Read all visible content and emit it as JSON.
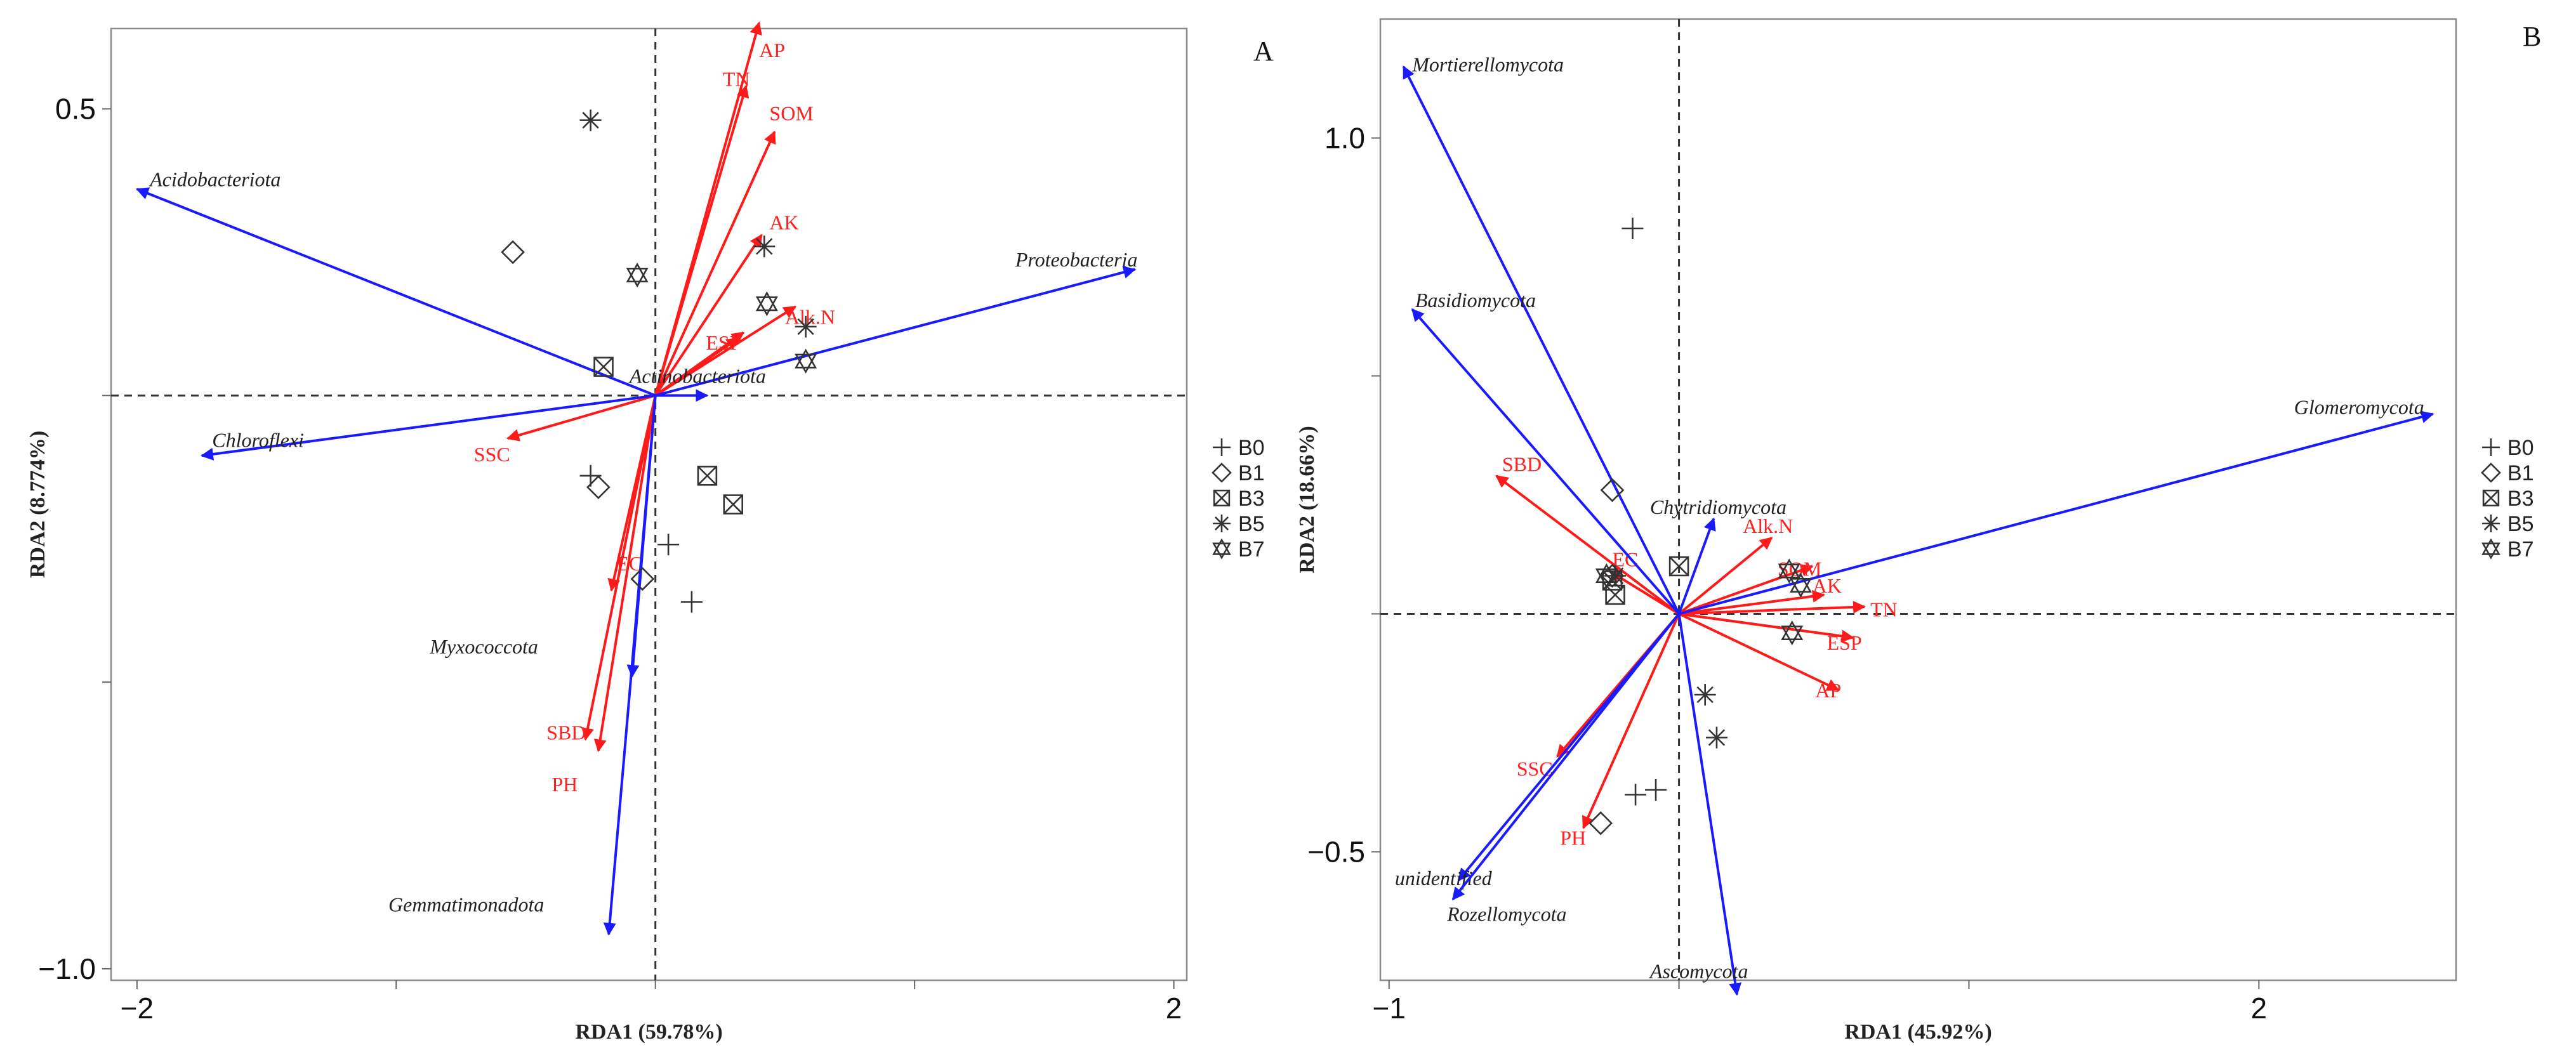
{
  "chart_data": [
    {
      "type": "scatter",
      "panel": "A",
      "xlabel": "RDA1 (59.78%)",
      "ylabel": "RDA2 (8.774%)",
      "xlim": [
        -2.1,
        2.05
      ],
      "ylim": [
        -1.02,
        0.64
      ],
      "xticks": [
        {
          "v": -2,
          "label": "−2"
        },
        {
          "v": 2,
          "label": "2"
        }
      ],
      "xminor": [
        -1,
        0,
        1
      ],
      "yticks": [
        {
          "v": 0.5,
          "label": "0.5"
        },
        {
          "v": -1.0,
          "label": "−1.0"
        }
      ],
      "yminor": [
        0,
        -0.5
      ],
      "taxa_arrows": [
        {
          "name": "Acidobacteriota",
          "x": -2.0,
          "y": 0.36,
          "lx": -1.95,
          "ly": 0.365,
          "anchor": "start"
        },
        {
          "name": "Proteobacteria",
          "x": 1.85,
          "y": 0.22,
          "lx": 1.86,
          "ly": 0.225,
          "anchor": "end"
        },
        {
          "name": "Chloroflexi",
          "x": -1.75,
          "y": -0.105,
          "lx": -1.71,
          "ly": -0.09,
          "anchor": "start"
        },
        {
          "name": "Actinobacteriota",
          "x": 0.2,
          "y": 0.0,
          "lx": -0.1,
          "ly": 0.022,
          "anchor": "start"
        },
        {
          "name": "Myxococcota",
          "x": -0.09,
          "y": -0.49,
          "lx": -0.87,
          "ly": -0.45,
          "anchor": "start"
        },
        {
          "name": "Gemmatimonadota",
          "x": -0.18,
          "y": -0.94,
          "lx": -1.03,
          "ly": -0.9,
          "anchor": "start"
        }
      ],
      "env_arrows": [
        {
          "name": "AP",
          "x": 0.4,
          "y": 0.65,
          "lx": 0.4,
          "ly": 0.59,
          "anchor": "start"
        },
        {
          "name": "TN",
          "x": 0.35,
          "y": 0.54,
          "lx": 0.26,
          "ly": 0.54,
          "anchor": "start"
        },
        {
          "name": "SOM",
          "x": 0.46,
          "y": 0.46,
          "lx": 0.44,
          "ly": 0.48,
          "anchor": "start"
        },
        {
          "name": "AK",
          "x": 0.41,
          "y": 0.28,
          "lx": 0.44,
          "ly": 0.29,
          "anchor": "start"
        },
        {
          "name": "Alk.N",
          "x": 0.54,
          "y": 0.155,
          "lx": 0.5,
          "ly": 0.125,
          "anchor": "start"
        },
        {
          "name": "ESP",
          "x": 0.34,
          "y": 0.11,
          "lx": 0.195,
          "ly": 0.08,
          "anchor": "start"
        },
        {
          "name": "EC",
          "x": 0.32,
          "y": 0.1,
          "lx": 0.0,
          "ly": 0.0,
          "anchor": "start",
          "hidden": true
        },
        {
          "name": "SSC",
          "x": -0.57,
          "y": -0.075,
          "lx": -0.7,
          "ly": -0.115,
          "anchor": "start"
        },
        {
          "name": "EC",
          "x": -0.17,
          "y": -0.34,
          "lx": -0.15,
          "ly": -0.305,
          "anchor": "start"
        },
        {
          "name": "SBD",
          "x": -0.27,
          "y": -0.6,
          "lx": -0.42,
          "ly": -0.6,
          "anchor": "start"
        },
        {
          "name": "PH",
          "x": -0.22,
          "y": -0.62,
          "lx": -0.4,
          "ly": -0.69,
          "anchor": "start"
        }
      ],
      "samples": [
        {
          "group": "B0",
          "points": [
            [
              -0.25,
              -0.14
            ],
            [
              0.05,
              -0.26
            ],
            [
              0.14,
              -0.36
            ]
          ]
        },
        {
          "group": "B1",
          "points": [
            [
              -0.55,
              0.25
            ],
            [
              -0.22,
              -0.16
            ],
            [
              -0.05,
              -0.32
            ]
          ]
        },
        {
          "group": "B3",
          "points": [
            [
              -0.2,
              0.05
            ],
            [
              0.2,
              -0.14
            ],
            [
              0.3,
              -0.19
            ]
          ]
        },
        {
          "group": "B5",
          "points": [
            [
              -0.25,
              0.48
            ],
            [
              0.42,
              0.26
            ],
            [
              0.58,
              0.12
            ]
          ]
        },
        {
          "group": "B7",
          "points": [
            [
              -0.07,
              0.21
            ],
            [
              0.43,
              0.16
            ],
            [
              0.58,
              0.06
            ]
          ]
        }
      ]
    },
    {
      "type": "scatter",
      "panel": "B",
      "xlabel": "RDA1 (45.92%)",
      "ylabel": "RDA2 (18.66%)",
      "xlim": [
        -1.03,
        2.68
      ],
      "ylim": [
        -0.77,
        1.25
      ],
      "xticks": [
        {
          "v": -1,
          "label": "−1"
        },
        {
          "v": 2,
          "label": "2"
        }
      ],
      "xminor": [
        0,
        1
      ],
      "yticks": [
        {
          "v": 1.0,
          "label": "1.0"
        },
        {
          "v": -0.5,
          "label": "−0.5"
        }
      ],
      "yminor": [
        0.5,
        0
      ],
      "taxa_arrows": [
        {
          "name": "Mortierellomycota",
          "x": -0.95,
          "y": 1.15,
          "lx": -0.92,
          "ly": 1.14,
          "anchor": "start"
        },
        {
          "name": "Basidiomycota",
          "x": -0.92,
          "y": 0.64,
          "lx": -0.91,
          "ly": 0.645,
          "anchor": "start"
        },
        {
          "name": "Glomeromycota",
          "x": 2.6,
          "y": 0.42,
          "lx": 2.57,
          "ly": 0.42,
          "anchor": "end"
        },
        {
          "name": "Chytridiomycota",
          "x": 0.12,
          "y": 0.2,
          "lx": -0.1,
          "ly": 0.21,
          "anchor": "start"
        },
        {
          "name": "unidentified",
          "x": -0.76,
          "y": -0.56,
          "lx": -0.98,
          "ly": -0.57,
          "anchor": "start"
        },
        {
          "name": "Rozellomycota",
          "x": -0.78,
          "y": -0.6,
          "lx": -0.8,
          "ly": -0.645,
          "anchor": "start"
        },
        {
          "name": "Ascomycota",
          "x": 0.2,
          "y": -0.8,
          "lx": -0.1,
          "ly": -0.765,
          "anchor": "start"
        }
      ],
      "env_arrows": [
        {
          "name": "SBD",
          "x": -0.63,
          "y": 0.29,
          "lx": -0.61,
          "ly": 0.3,
          "anchor": "start"
        },
        {
          "name": "EC",
          "x": -0.24,
          "y": 0.09,
          "lx": -0.23,
          "ly": 0.1,
          "anchor": "start"
        },
        {
          "name": "Alk.N",
          "x": 0.32,
          "y": 0.16,
          "lx": 0.22,
          "ly": 0.17,
          "anchor": "start"
        },
        {
          "name": "SOM",
          "x": 0.46,
          "y": 0.1,
          "lx": 0.34,
          "ly": 0.08,
          "anchor": "start"
        },
        {
          "name": "AK",
          "x": 0.5,
          "y": 0.04,
          "lx": 0.46,
          "ly": 0.045,
          "anchor": "start"
        },
        {
          "name": "TN",
          "x": 0.64,
          "y": 0.015,
          "lx": 0.66,
          "ly": -0.005,
          "anchor": "start"
        },
        {
          "name": "ESP",
          "x": 0.6,
          "y": -0.05,
          "lx": 0.51,
          "ly": -0.075,
          "anchor": "start"
        },
        {
          "name": "AP",
          "x": 0.55,
          "y": -0.16,
          "lx": 0.47,
          "ly": -0.175,
          "anchor": "start"
        },
        {
          "name": "SSC",
          "x": -0.42,
          "y": -0.3,
          "lx": -0.56,
          "ly": -0.34,
          "anchor": "start"
        },
        {
          "name": "PH",
          "x": -0.33,
          "y": -0.45,
          "lx": -0.41,
          "ly": -0.485,
          "anchor": "start"
        }
      ],
      "samples": [
        {
          "group": "B0",
          "points": [
            [
              -0.16,
              0.81
            ],
            [
              -0.15,
              -0.38
            ],
            [
              -0.08,
              -0.37
            ]
          ]
        },
        {
          "group": "B1",
          "points": [
            [
              -0.23,
              0.26
            ],
            [
              -0.23,
              0.08
            ],
            [
              -0.27,
              -0.44
            ]
          ]
        },
        {
          "group": "B3",
          "points": [
            [
              -0.22,
              0.04
            ],
            [
              0.0,
              0.1
            ],
            [
              -0.23,
              0.07
            ]
          ]
        },
        {
          "group": "B5",
          "points": [
            [
              0.09,
              -0.17
            ],
            [
              0.13,
              -0.26
            ],
            [
              -0.22,
              0.08
            ]
          ]
        },
        {
          "group": "B7",
          "points": [
            [
              0.38,
              0.09
            ],
            [
              0.42,
              0.06
            ],
            [
              0.39,
              -0.04
            ],
            [
              -0.25,
              0.08
            ]
          ]
        }
      ]
    }
  ],
  "legend_groups": [
    "B0",
    "B1",
    "B3",
    "B5",
    "B7"
  ],
  "colors": {
    "taxa": "#1a1aff",
    "env": "#ff1a1a",
    "text_env": "#ff2020",
    "points": "#333333"
  }
}
